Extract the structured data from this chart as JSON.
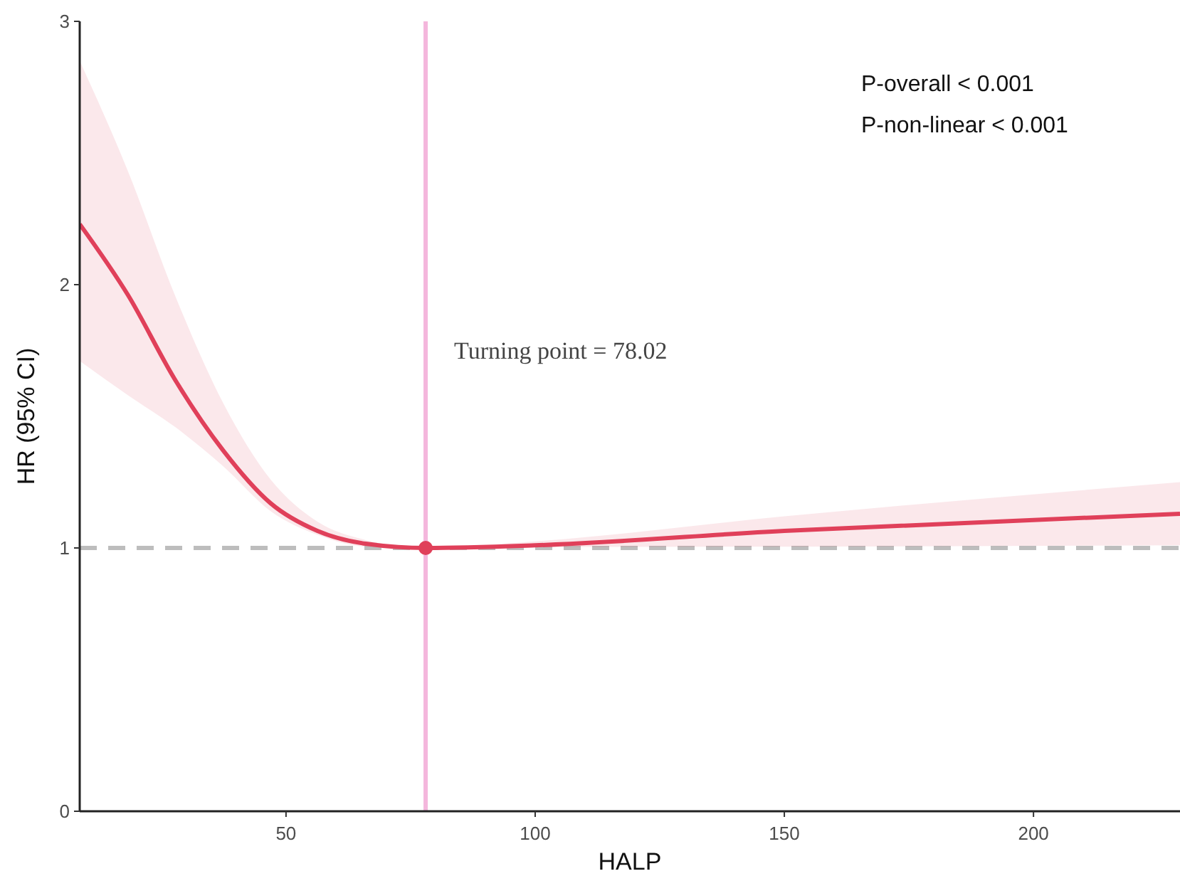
{
  "chart_data": {
    "type": "line",
    "xlabel": "HALP",
    "ylabel": "HR (95% CI)",
    "xlim": [
      8.6,
      229.4
    ],
    "ylim": [
      0,
      3
    ],
    "xticks": [
      50,
      100,
      150,
      200
    ],
    "yticks": [
      0,
      1,
      2,
      3
    ],
    "grid": false,
    "annotations": [
      "P-overall < 0.001",
      "P-non-linear < 0.001"
    ],
    "ref_lines": [
      {
        "axis": "x",
        "value": 78.02,
        "label": "Turning point = 78.02",
        "color": "#f4b6dc",
        "line_style": "solid"
      },
      {
        "axis": "y",
        "value": 1,
        "color": "#bdbdbd",
        "line_style": "dashed"
      }
    ],
    "series": [
      {
        "color": "#e0405a",
        "marker": "none",
        "x": [
          8.6,
          18.3,
          27.7,
          37.4,
          46.9,
          56.3,
          66,
          78.02,
          100,
          150,
          229.4
        ],
        "values": [
          2.23,
          1.96,
          1.64,
          1.37,
          1.17,
          1.065,
          1.016,
          1.0,
          1.01,
          1.065,
          1.13
        ],
        "lower": [
          1.71,
          1.58,
          1.46,
          1.31,
          1.14,
          1.05,
          1.005,
          1.0,
          1.003,
          1.005,
          1.01
        ],
        "upper": [
          2.85,
          2.43,
          1.96,
          1.55,
          1.26,
          1.1,
          1.03,
          1.0,
          1.025,
          1.12,
          1.25
        ]
      },
      {
        "type": "scatter",
        "color": "#e0405a",
        "marker": "circle",
        "x": [
          78.02
        ],
        "values": [
          1.0
        ]
      }
    ]
  }
}
